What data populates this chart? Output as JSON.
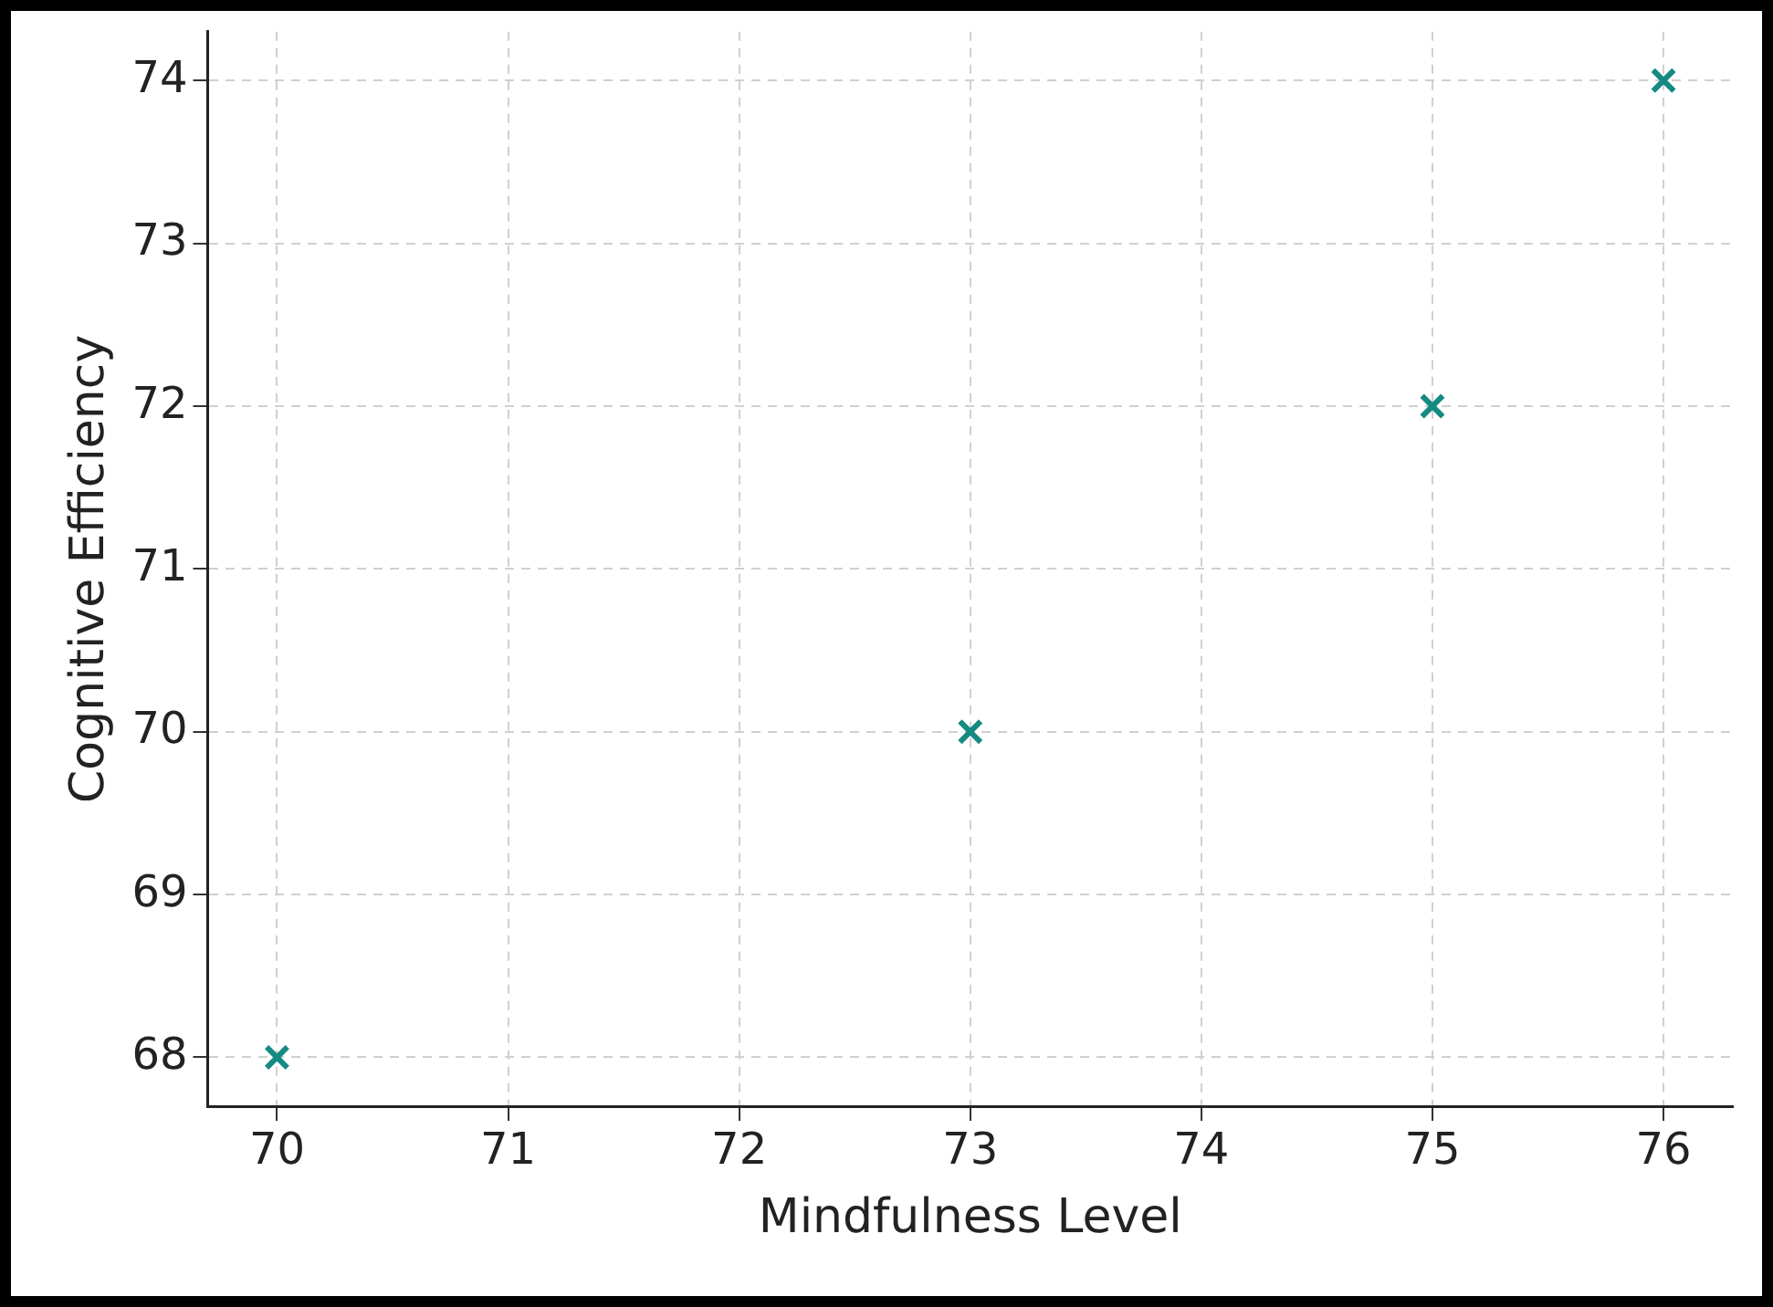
{
  "chart_data": {
    "type": "scatter",
    "xlabel": "Mindfulness Level",
    "ylabel": "Cognitive Efficiency",
    "x": [
      70,
      73,
      75,
      76
    ],
    "series": [
      {
        "color": "#148a82",
        "values": [
          68,
          70,
          72,
          74
        ]
      }
    ],
    "xlim": [
      69.7,
      76.3
    ],
    "xticks": [
      70,
      71,
      72,
      73,
      74,
      75,
      76
    ],
    "ylim": [
      67.7,
      74.3
    ],
    "yticks": [
      68,
      69,
      70,
      71,
      72,
      73,
      74
    ],
    "grid": true,
    "marker": "cross",
    "legend": false
  }
}
